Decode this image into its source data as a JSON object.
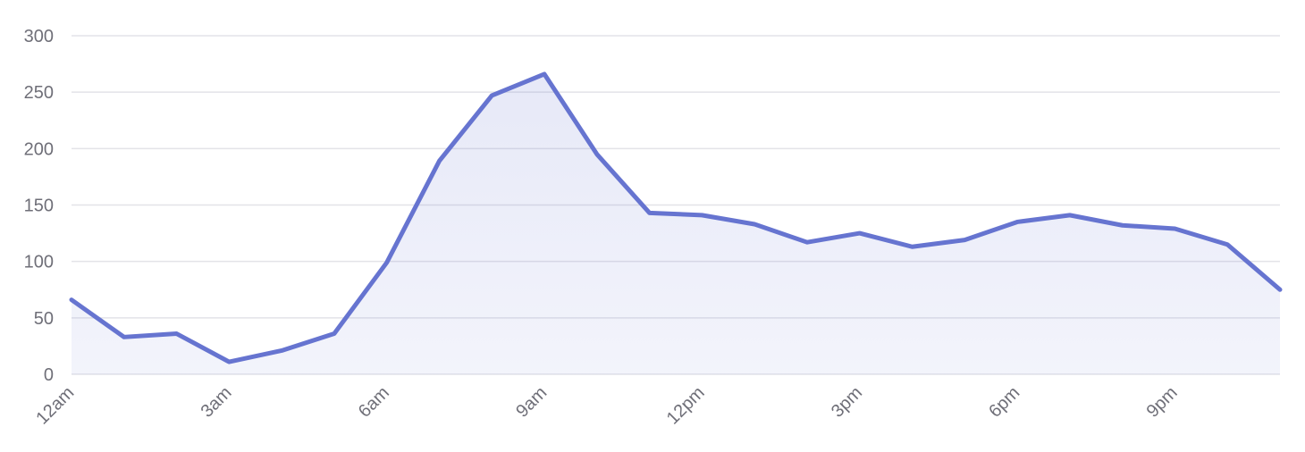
{
  "chart_data": {
    "type": "area",
    "title": "",
    "xlabel": "",
    "ylabel": "",
    "x": [
      "12am",
      "1am",
      "2am",
      "3am",
      "4am",
      "5am",
      "6am",
      "7am",
      "8am",
      "9am",
      "10am",
      "11am",
      "12pm",
      "1pm",
      "2pm",
      "3pm",
      "4pm",
      "5pm",
      "6pm",
      "7pm",
      "8pm",
      "9pm",
      "10pm",
      "11pm"
    ],
    "x_tick_labels": [
      "12am",
      "3am",
      "6am",
      "9am",
      "12pm",
      "3pm",
      "6pm",
      "9pm"
    ],
    "series": [
      {
        "values": [
          66,
          33,
          36,
          11,
          21,
          36,
          99,
          189,
          247,
          266,
          195,
          143,
          141,
          133,
          117,
          125,
          113,
          119,
          135,
          141,
          132,
          129,
          115,
          75
        ]
      }
    ],
    "ylim": [
      0,
      300
    ],
    "y_ticks": [
      0,
      50,
      100,
      150,
      200,
      250,
      300
    ],
    "grid": true,
    "legend": "none",
    "colors": {
      "line": "#6674d0",
      "fill": "#eceef9",
      "grid": "#e3e3e8",
      "text": "#6f6f78"
    }
  }
}
